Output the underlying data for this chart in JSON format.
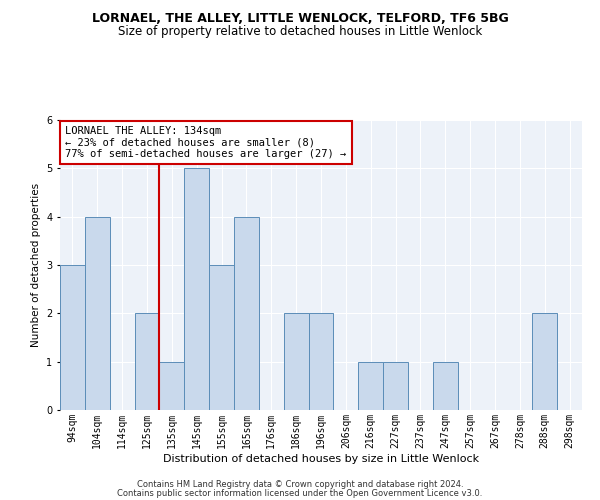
{
  "title": "LORNAEL, THE ALLEY, LITTLE WENLOCK, TELFORD, TF6 5BG",
  "subtitle": "Size of property relative to detached houses in Little Wenlock",
  "xlabel": "Distribution of detached houses by size in Little Wenlock",
  "ylabel": "Number of detached properties",
  "categories": [
    "94sqm",
    "104sqm",
    "114sqm",
    "125sqm",
    "135sqm",
    "145sqm",
    "155sqm",
    "165sqm",
    "176sqm",
    "186sqm",
    "196sqm",
    "206sqm",
    "216sqm",
    "227sqm",
    "237sqm",
    "247sqm",
    "257sqm",
    "267sqm",
    "278sqm",
    "288sqm",
    "298sqm"
  ],
  "values": [
    3,
    4,
    0,
    2,
    1,
    5,
    3,
    4,
    0,
    2,
    2,
    0,
    1,
    1,
    0,
    1,
    0,
    0,
    0,
    2,
    0
  ],
  "bar_color": "#c9d9ec",
  "bar_edge_color": "#5b8db8",
  "vline_index": 4,
  "vline_color": "#cc0000",
  "annotation_text": "LORNAEL THE ALLEY: 134sqm\n← 23% of detached houses are smaller (8)\n77% of semi-detached houses are larger (27) →",
  "annotation_box_color": "white",
  "annotation_box_edgecolor": "#cc0000",
  "ylim": [
    0,
    6
  ],
  "yticks": [
    0,
    1,
    2,
    3,
    4,
    5,
    6
  ],
  "footer1": "Contains HM Land Registry data © Crown copyright and database right 2024.",
  "footer2": "Contains public sector information licensed under the Open Government Licence v3.0.",
  "bg_color": "#edf2f9",
  "title_fontsize": 9,
  "subtitle_fontsize": 8.5,
  "xlabel_fontsize": 8,
  "ylabel_fontsize": 7.5,
  "tick_fontsize": 7,
  "annotation_fontsize": 7.5,
  "footer_fontsize": 6
}
